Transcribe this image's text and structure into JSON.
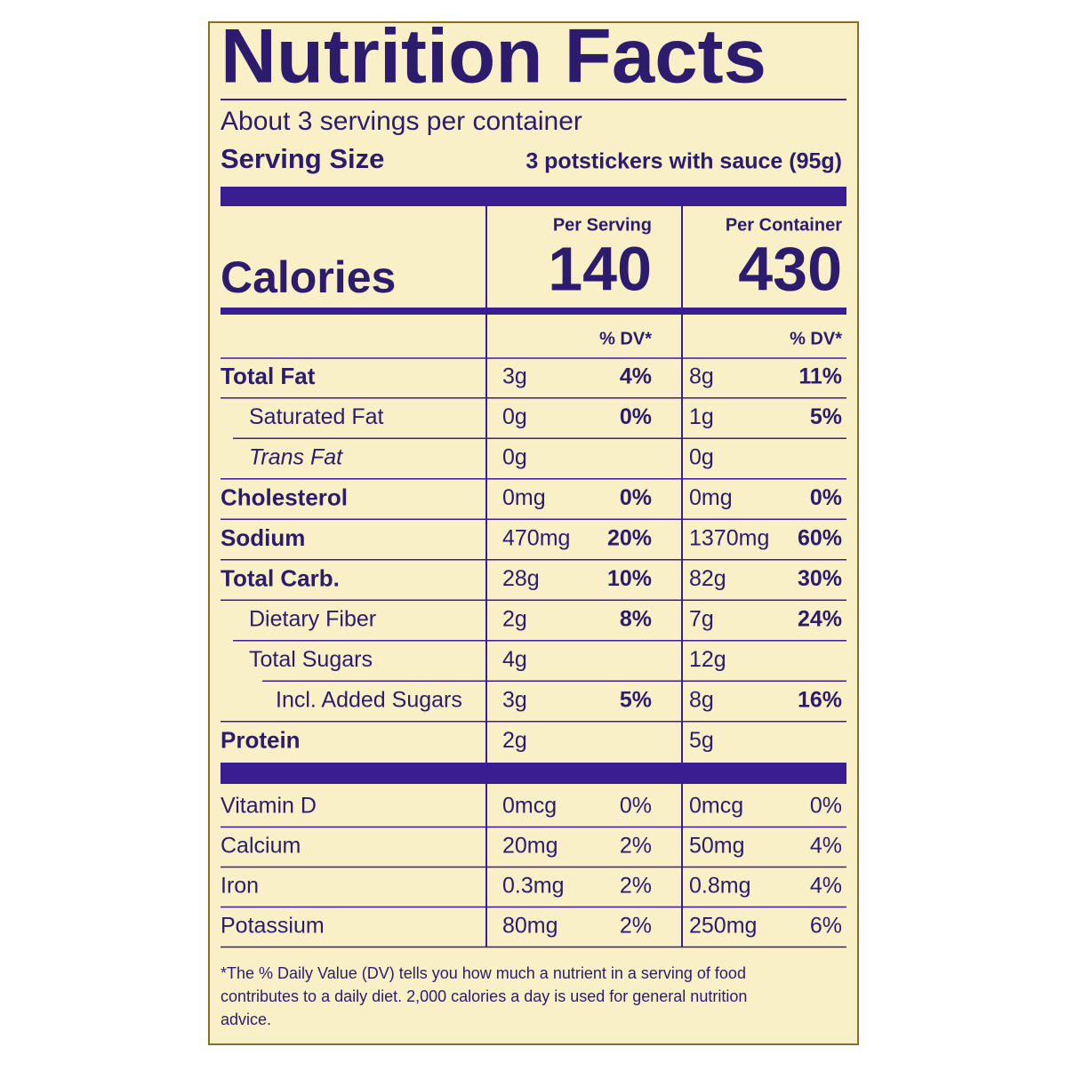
{
  "title": "Nutrition Facts",
  "servings": "About 3 servings per container",
  "serving_size": {
    "label": "Serving Size",
    "value": "3 potstickers with sauce (95g)"
  },
  "calories": {
    "label": "Calories",
    "per_serving": {
      "heading": "Per Serving",
      "value": "140"
    },
    "per_container": {
      "heading": "Per Container",
      "value": "430"
    }
  },
  "dv_heading": {
    "per_serving": "% DV*",
    "per_container": "% DV*"
  },
  "nutrients": [
    {
      "name": "Total Fat",
      "serving_amount": "3g",
      "serving_dv": "4%",
      "container_amount": "8g",
      "container_dv": "11%"
    },
    {
      "name": "Saturated Fat",
      "serving_amount": "0g",
      "serving_dv": "0%",
      "container_amount": "1g",
      "container_dv": "5%"
    },
    {
      "name": "Trans Fat",
      "serving_amount": "0g",
      "container_amount": "0g"
    },
    {
      "name": "Cholesterol",
      "serving_amount": "0mg",
      "serving_dv": "0%",
      "container_amount": "0mg",
      "container_dv": "0%"
    },
    {
      "name": "Sodium",
      "serving_amount": "470mg",
      "serving_dv": "20%",
      "container_amount": "1370mg",
      "container_dv": "60%"
    },
    {
      "name": "Total Carb.",
      "serving_amount": "28g",
      "serving_dv": "10%",
      "container_amount": "82g",
      "container_dv": "30%"
    },
    {
      "name": "Dietary Fiber",
      "serving_amount": "2g",
      "serving_dv": "8%",
      "container_amount": "7g",
      "container_dv": "24%"
    },
    {
      "name": "Total Sugars",
      "serving_amount": "4g",
      "container_amount": "12g"
    },
    {
      "name": "Incl. Added Sugars",
      "serving_amount": "3g",
      "serving_dv": "5%",
      "container_amount": "8g",
      "container_dv": "16%"
    },
    {
      "name": "Protein",
      "serving_amount": "2g",
      "container_amount": "5g"
    }
  ],
  "vitamins": [
    {
      "name": "Vitamin D",
      "serving_amount": "0mcg",
      "serving_dv": "0%",
      "container_amount": "0mcg",
      "container_dv": "0%"
    },
    {
      "name": "Calcium",
      "serving_amount": "20mg",
      "serving_dv": "2%",
      "container_amount": "50mg",
      "container_dv": "4%"
    },
    {
      "name": "Iron",
      "serving_amount": "0.3mg",
      "serving_dv": "2%",
      "container_amount": "0.8mg",
      "container_dv": "4%"
    },
    {
      "name": "Potassium",
      "serving_amount": "80mg",
      "serving_dv": "2%",
      "container_amount": "250mg",
      "container_dv": "6%"
    }
  ],
  "footnote": [
    "*The % Daily Value (DV) tells you how much a nutrient in a serving of food",
    "contributes to a daily diet. 2,000 calories a day is used for general nutrition",
    "advice."
  ]
}
